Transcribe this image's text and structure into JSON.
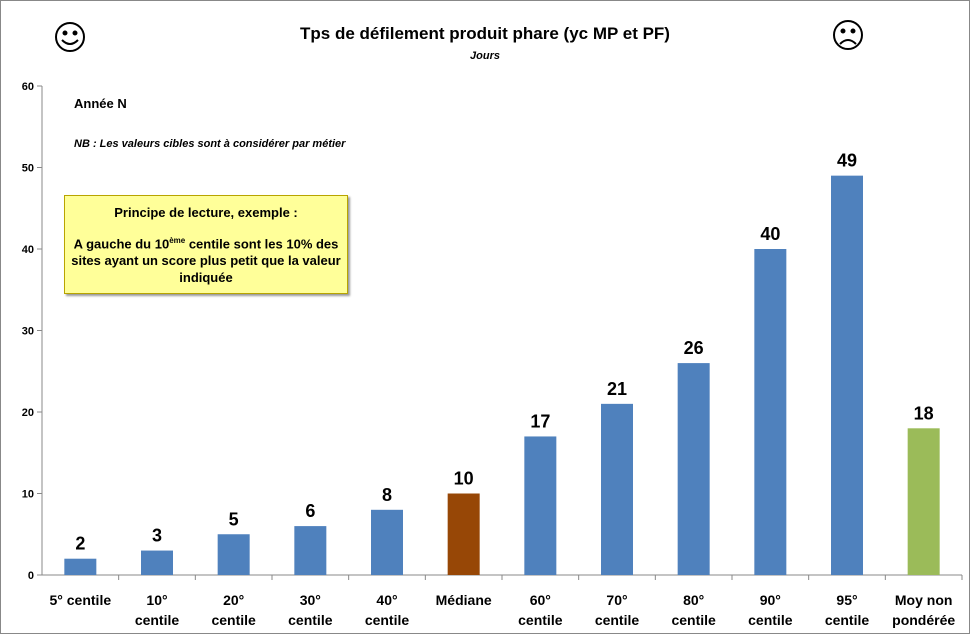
{
  "chart_data": {
    "type": "bar",
    "title": "Tps de défilement produit phare (yc MP et PF)",
    "subtitle": "Jours",
    "annotations": {
      "year": "Année N",
      "note": "NB : Les valeurs cibles sont à considérer par métier",
      "box_title": "Principe de lecture, exemple :",
      "box_text_before": "A gauche du 10",
      "box_text_sup": "ème",
      "box_text_after": "centile sont les 10% des sites ayant un score plus petit que la valeur indiquée"
    },
    "categories": [
      "5° centile",
      "10°\ncentile",
      "20°\ncentile",
      "30°\ncentile",
      "40°\ncentile",
      "Médiane",
      "60°\ncentile",
      "70°\ncentile",
      "80°\ncentile",
      "90°\ncentile",
      "95°\ncentile",
      "Moy non\npondérée"
    ],
    "values": [
      2,
      3,
      5,
      6,
      8,
      10,
      17,
      21,
      26,
      40,
      49,
      18
    ],
    "colors": [
      "#4f81bd",
      "#4f81bd",
      "#4f81bd",
      "#4f81bd",
      "#4f81bd",
      "#974706",
      "#4f81bd",
      "#4f81bd",
      "#4f81bd",
      "#4f81bd",
      "#4f81bd",
      "#9bbb59"
    ],
    "ylim": [
      0,
      60
    ],
    "yticks": [
      0,
      10,
      20,
      30,
      40,
      50,
      60
    ],
    "grid": false
  }
}
